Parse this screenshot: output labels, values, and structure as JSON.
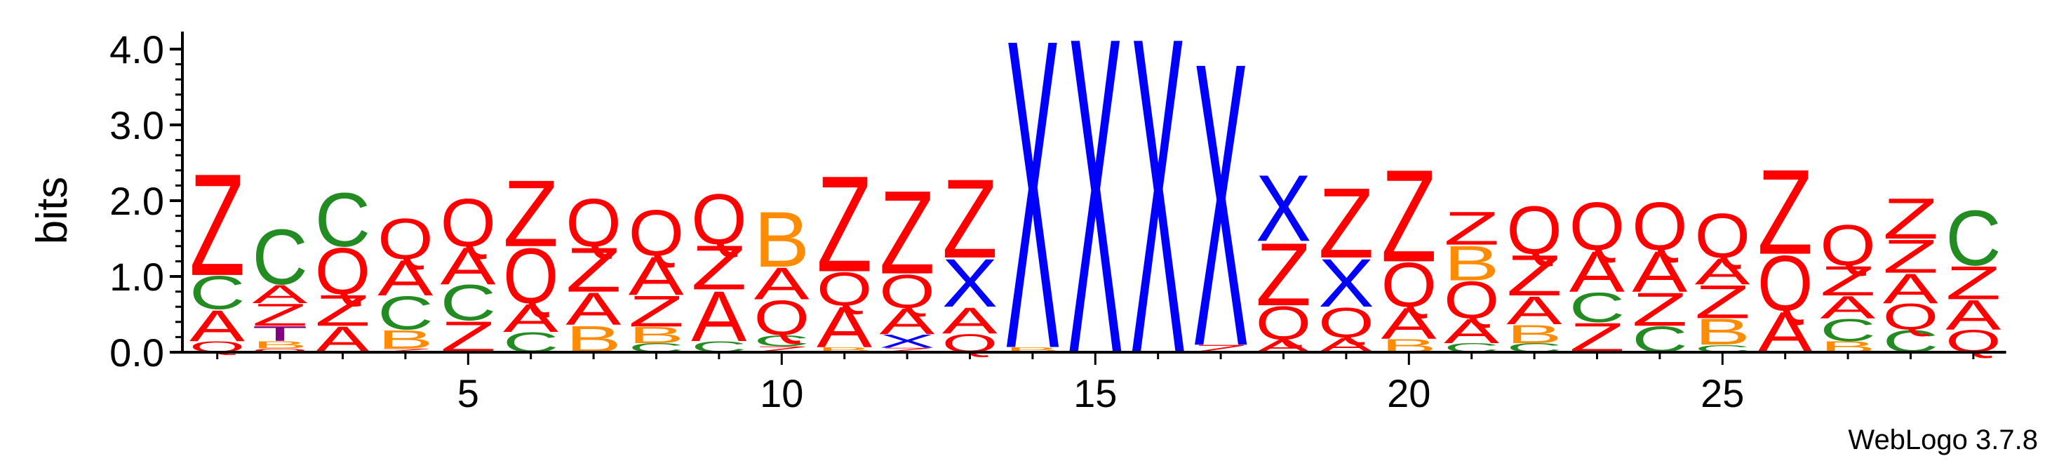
{
  "chart_data": {
    "type": "sequence-logo",
    "ylabel": "bits",
    "ylim": [
      0,
      4
    ],
    "yticks": [
      "0.0",
      "1.0",
      "2.0",
      "3.0",
      "4.0"
    ],
    "xticks": [
      5,
      10,
      15,
      20,
      25
    ],
    "positions_count": 29,
    "footer": "WebLogo 3.7.8",
    "colors": {
      "A": "#ff0000",
      "Q": "#ff0000",
      "Z": "#ff0000",
      "C": "#228b22",
      "B": "#ff8c00",
      "X": "#0000ff",
      "T": "#800080"
    },
    "columns": [
      {
        "position": 1,
        "stack": [
          {
            "letter": "Q",
            "height": 0.15
          },
          {
            "letter": "A",
            "height": 0.42
          },
          {
            "letter": "C",
            "height": 0.45
          },
          {
            "letter": "Z",
            "height": 1.38
          }
        ]
      },
      {
        "position": 2,
        "stack": [
          {
            "letter": "Q",
            "height": 0.05
          },
          {
            "letter": "B",
            "height": 0.1
          },
          {
            "letter": "T",
            "height": 0.2
          },
          {
            "letter": "Z",
            "height": 0.3
          },
          {
            "letter": "A",
            "height": 0.25
          },
          {
            "letter": "C",
            "height": 0.75
          }
        ]
      },
      {
        "position": 3,
        "stack": [
          {
            "letter": "A",
            "height": 0.35
          },
          {
            "letter": "Z",
            "height": 0.42
          },
          {
            "letter": "Q",
            "height": 0.63
          },
          {
            "letter": "C",
            "height": 0.73
          }
        ]
      },
      {
        "position": 4,
        "stack": [
          {
            "letter": "Z",
            "height": 0.05
          },
          {
            "letter": "B",
            "height": 0.25
          },
          {
            "letter": "C",
            "height": 0.45
          },
          {
            "letter": "A",
            "height": 0.48
          },
          {
            "letter": "Q",
            "height": 0.55
          }
        ]
      },
      {
        "position": 5,
        "stack": [
          {
            "letter": "Z",
            "height": 0.42
          },
          {
            "letter": "C",
            "height": 0.48
          },
          {
            "letter": "A",
            "height": 0.5
          },
          {
            "letter": "Q",
            "height": 0.65
          }
        ]
      },
      {
        "position": 6,
        "stack": [
          {
            "letter": "C",
            "height": 0.27
          },
          {
            "letter": "A",
            "height": 0.38
          },
          {
            "letter": "Q",
            "height": 0.75
          },
          {
            "letter": "Z",
            "height": 0.9
          }
        ]
      },
      {
        "position": 7,
        "stack": [
          {
            "letter": "B",
            "height": 0.36
          },
          {
            "letter": "A",
            "height": 0.44
          },
          {
            "letter": "Z",
            "height": 0.6
          },
          {
            "letter": "Q",
            "height": 0.65
          }
        ]
      },
      {
        "position": 8,
        "stack": [
          {
            "letter": "C",
            "height": 0.12
          },
          {
            "letter": "B",
            "height": 0.22
          },
          {
            "letter": "Z",
            "height": 0.42
          },
          {
            "letter": "A",
            "height": 0.52
          },
          {
            "letter": "Q",
            "height": 0.62
          }
        ]
      },
      {
        "position": 9,
        "stack": [
          {
            "letter": "C",
            "height": 0.15
          },
          {
            "letter": "A",
            "height": 0.68
          },
          {
            "letter": "Z",
            "height": 0.6
          },
          {
            "letter": "Q",
            "height": 0.68
          }
        ]
      },
      {
        "position": 10,
        "stack": [
          {
            "letter": "Z",
            "height": 0.08
          },
          {
            "letter": "C",
            "height": 0.15
          },
          {
            "letter": "Q",
            "height": 0.47
          },
          {
            "letter": "A",
            "height": 0.43
          },
          {
            "letter": "B",
            "height": 0.75
          }
        ]
      },
      {
        "position": 11,
        "stack": [
          {
            "letter": "B",
            "height": 0.07
          },
          {
            "letter": "A",
            "height": 0.55
          },
          {
            "letter": "Q",
            "height": 0.45
          },
          {
            "letter": "Z",
            "height": 1.3
          }
        ]
      },
      {
        "position": 12,
        "stack": [
          {
            "letter": "Z",
            "height": 0.06
          },
          {
            "letter": "X",
            "height": 0.18
          },
          {
            "letter": "A",
            "height": 0.35
          },
          {
            "letter": "Q",
            "height": 0.45
          },
          {
            "letter": "Z",
            "height": 1.13
          }
        ]
      },
      {
        "position": 13,
        "stack": [
          {
            "letter": "Q",
            "height": 0.25
          },
          {
            "letter": "A",
            "height": 0.35
          },
          {
            "letter": "X",
            "height": 0.65
          },
          {
            "letter": "Z",
            "height": 1.07
          }
        ]
      },
      {
        "position": 14,
        "stack": [
          {
            "letter": "B",
            "height": 0.07
          },
          {
            "letter": "X",
            "height": 4.2
          }
        ]
      },
      {
        "position": 15,
        "stack": [
          {
            "letter": "X",
            "height": 4.3
          }
        ]
      },
      {
        "position": 16,
        "stack": [
          {
            "letter": "X",
            "height": 4.3
          }
        ]
      },
      {
        "position": 17,
        "stack": [
          {
            "letter": "Z",
            "height": 0.1
          },
          {
            "letter": "X",
            "height": 3.85
          }
        ]
      },
      {
        "position": 18,
        "stack": [
          {
            "letter": "A",
            "height": 0.17
          },
          {
            "letter": "Q",
            "height": 0.45
          },
          {
            "letter": "Z",
            "height": 0.85
          },
          {
            "letter": "X",
            "height": 0.9
          }
        ]
      },
      {
        "position": 19,
        "stack": [
          {
            "letter": "A",
            "height": 0.2
          },
          {
            "letter": "Q",
            "height": 0.4
          },
          {
            "letter": "X",
            "height": 0.65
          },
          {
            "letter": "Z",
            "height": 0.95
          }
        ]
      },
      {
        "position": 20,
        "stack": [
          {
            "letter": "B",
            "height": 0.18
          },
          {
            "letter": "A",
            "height": 0.42
          },
          {
            "letter": "Q",
            "height": 0.6
          },
          {
            "letter": "Z",
            "height": 1.25
          }
        ]
      },
      {
        "position": 21,
        "stack": [
          {
            "letter": "C",
            "height": 0.12
          },
          {
            "letter": "A",
            "height": 0.33
          },
          {
            "letter": "Q",
            "height": 0.5
          },
          {
            "letter": "B",
            "height": 0.47
          },
          {
            "letter": "Z",
            "height": 0.45
          }
        ]
      },
      {
        "position": 22,
        "stack": [
          {
            "letter": "C",
            "height": 0.12
          },
          {
            "letter": "B",
            "height": 0.25
          },
          {
            "letter": "A",
            "height": 0.38
          },
          {
            "letter": "Z",
            "height": 0.55
          },
          {
            "letter": "Q",
            "height": 0.65
          }
        ]
      },
      {
        "position": 23,
        "stack": [
          {
            "letter": "Z",
            "height": 0.4
          },
          {
            "letter": "C",
            "height": 0.4
          },
          {
            "letter": "A",
            "height": 0.55
          },
          {
            "letter": "Q",
            "height": 0.65
          }
        ]
      },
      {
        "position": 24,
        "stack": [
          {
            "letter": "C",
            "height": 0.35
          },
          {
            "letter": "Z",
            "height": 0.45
          },
          {
            "letter": "A",
            "height": 0.55
          },
          {
            "letter": "Q",
            "height": 0.65
          }
        ]
      },
      {
        "position": 25,
        "stack": [
          {
            "letter": "C",
            "height": 0.1
          },
          {
            "letter": "B",
            "height": 0.35
          },
          {
            "letter": "Z",
            "height": 0.45
          },
          {
            "letter": "A",
            "height": 0.35
          },
          {
            "letter": "Q",
            "height": 0.6
          }
        ]
      },
      {
        "position": 26,
        "stack": [
          {
            "letter": "A",
            "height": 0.55
          },
          {
            "letter": "Q",
            "height": 0.75
          },
          {
            "letter": "Z",
            "height": 1.15
          }
        ]
      },
      {
        "position": 27,
        "stack": [
          {
            "letter": "B",
            "height": 0.15
          },
          {
            "letter": "C",
            "height": 0.3
          },
          {
            "letter": "A",
            "height": 0.3
          },
          {
            "letter": "Z",
            "height": 0.4
          },
          {
            "letter": "Q",
            "height": 0.55
          }
        ]
      },
      {
        "position": 28,
        "stack": [
          {
            "letter": "C",
            "height": 0.3
          },
          {
            "letter": "Q",
            "height": 0.35
          },
          {
            "letter": "A",
            "height": 0.4
          },
          {
            "letter": "Z",
            "height": 0.45
          },
          {
            "letter": "Z",
            "height": 0.55
          }
        ]
      },
      {
        "position": 29,
        "stack": [
          {
            "letter": "Q",
            "height": 0.3
          },
          {
            "letter": "A",
            "height": 0.4
          },
          {
            "letter": "Z",
            "height": 0.45
          },
          {
            "letter": "C",
            "height": 0.75
          }
        ]
      }
    ]
  }
}
